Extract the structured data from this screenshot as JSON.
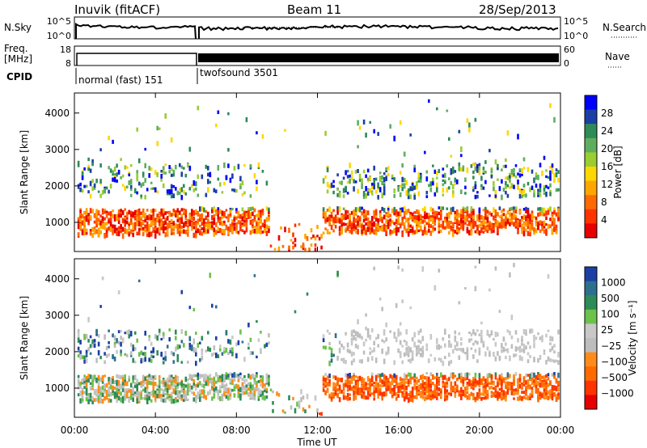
{
  "header": {
    "station": "Inuvik (fitACF)",
    "beam": "Beam 11",
    "date": "28/Sep/2013"
  },
  "colors": {
    "power_scale": [
      "#0000ff",
      "#1c3fa6",
      "#2e8b57",
      "#5fae5f",
      "#9acd32",
      "#ffd700",
      "#ffa500",
      "#ff6a00",
      "#ff3300",
      "#e60000"
    ],
    "velocity_scale": [
      "#1c3fa6",
      "#2e6f8e",
      "#2e8b57",
      "#6cc24a",
      "#c8c8c8",
      "#bdbdbd",
      "#ff8c1a",
      "#ff6a00",
      "#ff3300",
      "#e60000"
    ]
  },
  "chart_data": [
    {
      "id": "noise",
      "type": "line",
      "labels_left": [
        "N.Sky"
      ],
      "labels_right": [
        "N.Search"
      ],
      "ytick_left": [
        "10^5",
        "10^0"
      ],
      "ytick_right": [
        "10^5",
        "10^0"
      ]
    },
    {
      "id": "freq",
      "type": "line",
      "labels_left": [
        "Freq.",
        "[MHz]"
      ],
      "labels_right": [
        "Nave"
      ],
      "ytick_left": [
        "18",
        "8"
      ],
      "ytick_right": [
        "60",
        "0"
      ]
    },
    {
      "id": "cpid",
      "type": "table",
      "label": "CPID",
      "segments": [
        {
          "name": "normal (fast) 151",
          "start_hr": 0,
          "end_hr": 6
        },
        {
          "name": "twofsound 3501",
          "start_hr": 6,
          "end_hr": 24
        }
      ]
    },
    {
      "id": "power",
      "type": "heatmap",
      "ylabel": "Slant Range [km]",
      "yticks": [
        1000,
        2000,
        3000,
        4000
      ],
      "ylim": [
        200,
        4550
      ],
      "xlim_hr": [
        0,
        24
      ],
      "colorbar": {
        "label": "Power [dB]",
        "ticks": [
          "28",
          "24",
          "20",
          "16",
          "12",
          "8",
          "4"
        ]
      }
    },
    {
      "id": "velocity",
      "type": "heatmap",
      "ylabel": "Slant Range [km]",
      "yticks": [
        1000,
        2000,
        3000,
        4000
      ],
      "ylim": [
        200,
        4550
      ],
      "xlim_hr": [
        0,
        24
      ],
      "colorbar": {
        "label": "Velocity [m s⁻¹]",
        "ticks": [
          "1000",
          "500",
          "100",
          "25",
          "−25",
          "−100",
          "−500",
          "−1000"
        ]
      }
    }
  ],
  "xaxis": {
    "ticks": [
      "00:00",
      "04:00",
      "08:00",
      "12:00",
      "16:00",
      "20:00",
      "00:00"
    ],
    "label": "Time UT"
  }
}
